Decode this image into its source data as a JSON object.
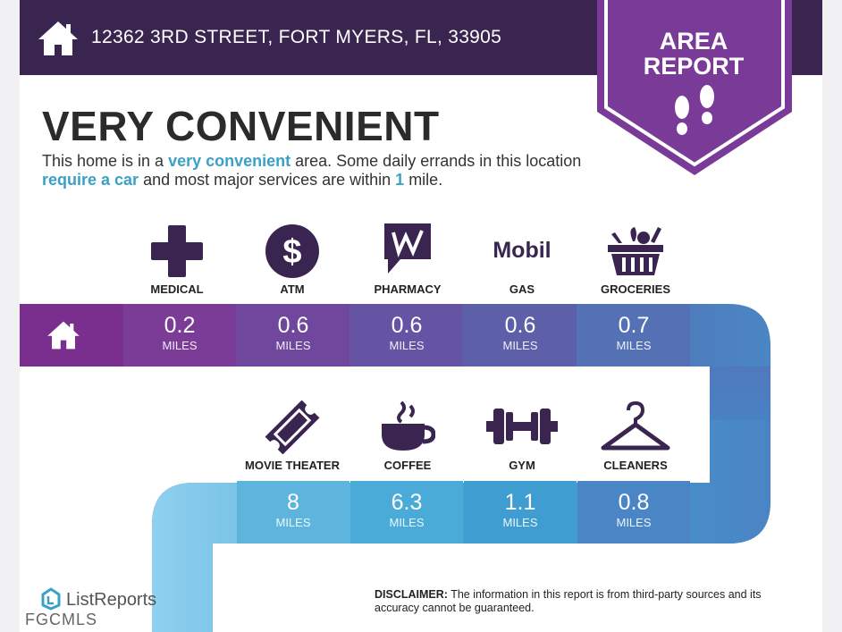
{
  "header": {
    "address": "12362 3RD STREET, FORT MYERS, FL, 33905",
    "badge_line1": "AREA",
    "badge_line2": "REPORT"
  },
  "summary": {
    "headline": "VERY CONVENIENT",
    "text_1": "This home is in a ",
    "highlight_1": "very convenient",
    "text_2": " area. Some daily errands in this location ",
    "highlight_2": "require a car",
    "text_3": " and most major services are within ",
    "highlight_3": "1",
    "text_4": " mile."
  },
  "row1": [
    {
      "label": "MEDICAL",
      "value": "0.2",
      "unit": "MILES",
      "icon": "medical-cross-icon"
    },
    {
      "label": "ATM",
      "value": "0.6",
      "unit": "MILES",
      "icon": "dollar-icon"
    },
    {
      "label": "PHARMACY",
      "value": "0.6",
      "unit": "MILES",
      "icon": "pharmacy-icon"
    },
    {
      "label": "GAS",
      "value": "0.6",
      "unit": "MILES",
      "icon": "mobil-logo"
    },
    {
      "label": "GROCERIES",
      "value": "0.7",
      "unit": "MILES",
      "icon": "grocery-basket-icon"
    }
  ],
  "row2": [
    {
      "label": "MOVIE THEATER",
      "value": "8",
      "unit": "MILES",
      "icon": "ticket-icon"
    },
    {
      "label": "COFFEE",
      "value": "6.3",
      "unit": "MILES",
      "icon": "coffee-cup-icon"
    },
    {
      "label": "GYM",
      "value": "1.1",
      "unit": "MILES",
      "icon": "dumbbell-icon"
    },
    {
      "label": "CLEANERS",
      "value": "0.8",
      "unit": "MILES",
      "icon": "hanger-icon"
    }
  ],
  "gas_logo_text": "Mobil",
  "footer": {
    "brand": "ListReports",
    "mls": "FGCMLS",
    "disclaimer_label": "DISCLAIMER:",
    "disclaimer_text": " The information in this report is from third-party sources and its accuracy cannot be guaranteed."
  },
  "colors": {
    "header_bg": "#3a2550",
    "badge": "#7a3b98",
    "highlight": "#3aa0c6",
    "row1_cells": [
      "#7b3c97",
      "#6f479c",
      "#6554a3",
      "#5d60a9",
      "#5371b4"
    ],
    "row2_cells": [
      "#5db5de",
      "#4aabd9",
      "#3f9dd2",
      "#4a86c5"
    ]
  }
}
